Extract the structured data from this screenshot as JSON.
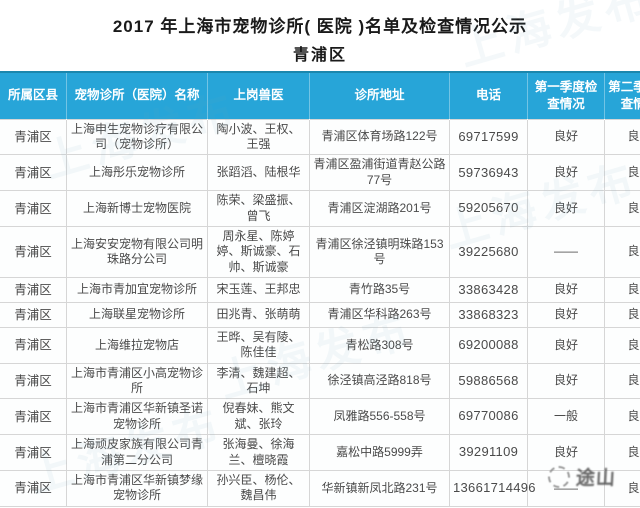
{
  "title": "2017 年上海市宠物诊所( 医院 )名单及检查情况公示",
  "subtitle": "青浦区",
  "colors": {
    "header_bg": "#27a5d8",
    "header_text": "#ffffff",
    "body_text": "#4a4a4a",
    "grid_line": "#d6d6d6"
  },
  "table": {
    "columns": [
      {
        "key": "district",
        "label": "所属区县"
      },
      {
        "key": "name",
        "label": "宠物诊所（医院）名称"
      },
      {
        "key": "vets",
        "label": "上岗兽医"
      },
      {
        "key": "address",
        "label": "诊所地址"
      },
      {
        "key": "phone",
        "label": "电话"
      },
      {
        "key": "q1",
        "label": "第一季度检查情况"
      },
      {
        "key": "q2",
        "label": "第二季度检查情况"
      }
    ],
    "rows": [
      {
        "district": "青浦区",
        "name": "上海申生宠物诊疗有限公司（宠物诊所）",
        "vets": "陶小波、王权、王强",
        "address": "青浦区体育场路122号",
        "phone": "69717599",
        "q1": "良好",
        "q2": "良好"
      },
      {
        "district": "青浦区",
        "name": "上海彤乐宠物诊所",
        "vets": "张蹈滔、陆根华",
        "address": "青浦区盈浦街道青赵公路77号",
        "phone": "59736943",
        "q1": "良好",
        "q2": "良好"
      },
      {
        "district": "青浦区",
        "name": "上海新博士宠物医院",
        "vets": "陈荣、梁盛振、曾飞",
        "address": "青浦区淀湖路201号",
        "phone": "59205670",
        "q1": "良好",
        "q2": "良好"
      },
      {
        "district": "青浦区",
        "name": "上海安安宠物有限公司明珠路分公司",
        "vets": "周永星、陈婷婷、斯诚豪、石帅、斯诚豪",
        "address": "青浦区徐泾镇明珠路153号",
        "phone": "39225680",
        "q1": "——",
        "q2": "良好"
      },
      {
        "district": "青浦区",
        "name": "上海市青加宜宠物诊所",
        "vets": "宋玉莲、王邦忠",
        "address": "青竹路35号",
        "phone": "33863428",
        "q1": "良好",
        "q2": "良好"
      },
      {
        "district": "青浦区",
        "name": "上海联星宠物诊所",
        "vets": "田兆青、张萌萌",
        "address": "青浦区华科路263号",
        "phone": "33868323",
        "q1": "良好",
        "q2": "良好"
      },
      {
        "district": "青浦区",
        "name": "上海维拉宠物店",
        "vets": "王晔、吴有陵、陈佳佳",
        "address": "青松路308号",
        "phone": "69200088",
        "q1": "良好",
        "q2": "良好"
      },
      {
        "district": "青浦区",
        "name": "上海市青浦区小高宠物诊所",
        "vets": "李清、魏建超、石坤",
        "address": "徐泾镇高泾路818号",
        "phone": "59886568",
        "q1": "良好",
        "q2": "良好"
      },
      {
        "district": "青浦区",
        "name": "上海市青浦区华新镇圣诺宠物诊所",
        "vets": "倪春妹、熊文斌、张玲",
        "address": "凤雅路556-558号",
        "phone": "69770086",
        "q1": "一般",
        "q2": "良好"
      },
      {
        "district": "青浦区",
        "name": "上海顽皮家族有限公司青浦第二分公司",
        "vets": "张海曼、徐海兰、檀晓霞",
        "address": "嘉松中路5999弄",
        "phone": "39291109",
        "q1": "良好",
        "q2": "良好"
      },
      {
        "district": "青浦区",
        "name": "上海市青浦区华新镇梦缘宠物诊所",
        "vets": "孙兴臣、杨伦、魏昌伟",
        "address": "华新镇新凤北路231号",
        "phone": "13661714496",
        "q1": "——",
        "q2": "良好"
      }
    ]
  },
  "watermarks": {
    "diagonal_text": "上海发布",
    "corner_text": "途山"
  }
}
